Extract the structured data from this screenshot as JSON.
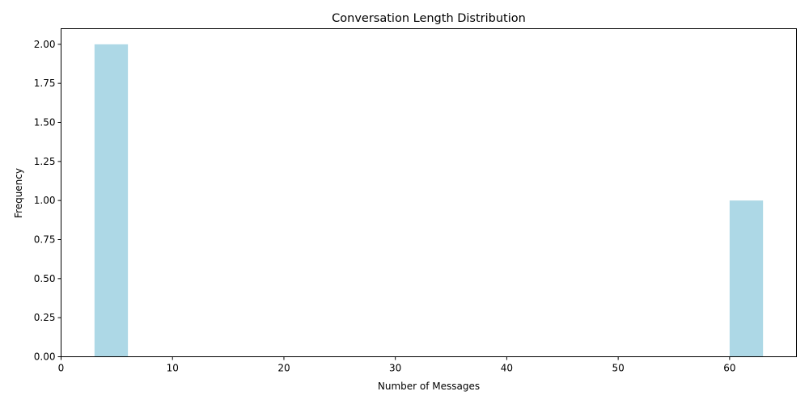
{
  "chart_data": {
    "type": "bar",
    "title": "Conversation Length Distribution",
    "xlabel": "Number of Messages",
    "ylabel": "Frequency",
    "xlim": [
      0,
      66
    ],
    "ylim": [
      0,
      2.1
    ],
    "bar_color": "#add8e6",
    "bars": [
      {
        "x_start": 3,
        "x_end": 6,
        "value": 2
      },
      {
        "x_start": 60,
        "x_end": 63,
        "value": 1
      }
    ],
    "x_ticks": [
      {
        "value": 0,
        "label": "0"
      },
      {
        "value": 10,
        "label": "10"
      },
      {
        "value": 20,
        "label": "20"
      },
      {
        "value": 30,
        "label": "30"
      },
      {
        "value": 40,
        "label": "40"
      },
      {
        "value": 50,
        "label": "50"
      },
      {
        "value": 60,
        "label": "60"
      }
    ],
    "y_ticks": [
      {
        "value": 0,
        "label": "0.00"
      },
      {
        "value": 0.25,
        "label": "0.25"
      },
      {
        "value": 0.5,
        "label": "0.50"
      },
      {
        "value": 0.75,
        "label": "0.75"
      },
      {
        "value": 1,
        "label": "1.00"
      },
      {
        "value": 1.25,
        "label": "1.25"
      },
      {
        "value": 1.5,
        "label": "1.50"
      },
      {
        "value": 1.75,
        "label": "1.75"
      },
      {
        "value": 2,
        "label": "2.00"
      }
    ],
    "grid": false,
    "legend": "none"
  }
}
